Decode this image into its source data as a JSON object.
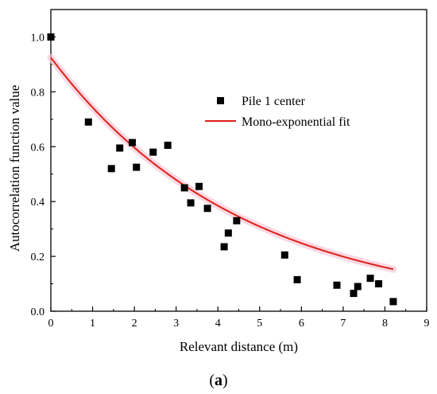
{
  "chart_data": {
    "type": "scatter",
    "title": "",
    "xlabel": "Relevant distance (m)",
    "ylabel": "Autocorrelation function value",
    "xlim": [
      0,
      9
    ],
    "ylim": [
      0,
      1.1
    ],
    "x_ticks": [
      0,
      1,
      2,
      3,
      4,
      5,
      6,
      7,
      8,
      9
    ],
    "y_ticks": [
      0.0,
      0.2,
      0.4,
      0.6,
      0.8,
      1.0
    ],
    "y_tick_labels": [
      "0.0",
      "0.2",
      "0.4",
      "0.6",
      "0.8",
      "1.0"
    ],
    "grid": false,
    "legend_position": "upper-right",
    "series": [
      {
        "name": "Pile 1 center",
        "kind": "scatter",
        "marker": "square",
        "color": "#000000",
        "x": [
          0,
          0.9,
          1.45,
          1.65,
          1.95,
          2.05,
          2.45,
          2.8,
          3.2,
          3.35,
          3.55,
          3.75,
          4.15,
          4.25,
          4.45,
          5.6,
          5.9,
          6.85,
          7.25,
          7.35,
          7.65,
          7.85,
          8.2
        ],
        "y": [
          1.0,
          0.69,
          0.52,
          0.595,
          0.615,
          0.525,
          0.58,
          0.605,
          0.45,
          0.395,
          0.455,
          0.375,
          0.235,
          0.285,
          0.33,
          0.205,
          0.115,
          0.095,
          0.065,
          0.09,
          0.12,
          0.1,
          0.035
        ]
      },
      {
        "name": "Mono-exponential fit",
        "kind": "line",
        "color": "#e0201b",
        "x": [
          0,
          0.5,
          1,
          1.5,
          2,
          2.5,
          3,
          3.5,
          4,
          4.5,
          5,
          5.5,
          6,
          6.5,
          7,
          7.5,
          8,
          8.2
        ],
        "y": [
          0.925,
          0.829,
          0.743,
          0.666,
          0.597,
          0.535,
          0.479,
          0.429,
          0.385,
          0.345,
          0.309,
          0.277,
          0.248,
          0.222,
          0.199,
          0.179,
          0.16,
          0.048
        ]
      }
    ],
    "caption": "(a)",
    "caption_bold": "a"
  }
}
